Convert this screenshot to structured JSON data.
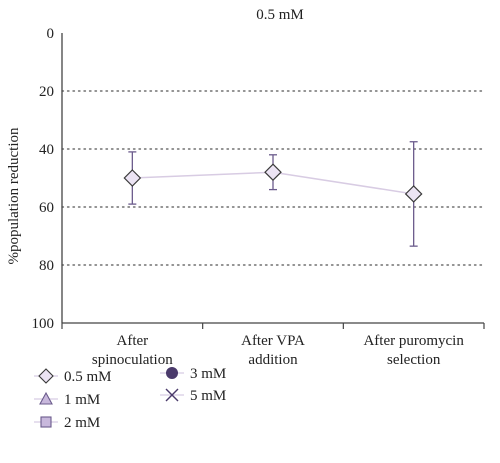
{
  "chart_data": {
    "type": "scatter",
    "title": "0.5 mM",
    "ylabel": "%population reduction",
    "xlabel": "",
    "ylim": [
      0,
      100
    ],
    "y_inverted": true,
    "yticks": [
      "0",
      "20",
      "40",
      "60",
      "80",
      "100"
    ],
    "grid": "horizontal dotted",
    "categories": [
      [
        "After",
        "spinoculation"
      ],
      [
        "After VPA",
        "addition"
      ],
      [
        "After puromycin",
        "selection"
      ]
    ],
    "series": [
      {
        "name": "0.5 mM",
        "marker": "diamond",
        "values": [
          50,
          48,
          55.5
        ],
        "error_low": [
          59,
          54,
          73.5
        ],
        "error_high": [
          41,
          42,
          37.5
        ]
      }
    ],
    "legend": {
      "placement": "bottom-left",
      "items": [
        {
          "label": "0.5 mM",
          "marker": "diamond"
        },
        {
          "label": "1 mM",
          "marker": "triangle"
        },
        {
          "label": "2 mM",
          "marker": "square"
        },
        {
          "label": "3 mM",
          "marker": "circle"
        },
        {
          "label": "5 mM",
          "marker": "cross"
        }
      ]
    },
    "colors": {
      "line": "#d8cce3",
      "error_bar": "#6b5b8c",
      "marker_fill": "#ece4f4",
      "marker_stroke": "#3a3a3a",
      "legend_fill": "#c8b8dc",
      "legend_dark": "#4a3a6b",
      "grid": "#555555",
      "axis": "#444444"
    }
  }
}
